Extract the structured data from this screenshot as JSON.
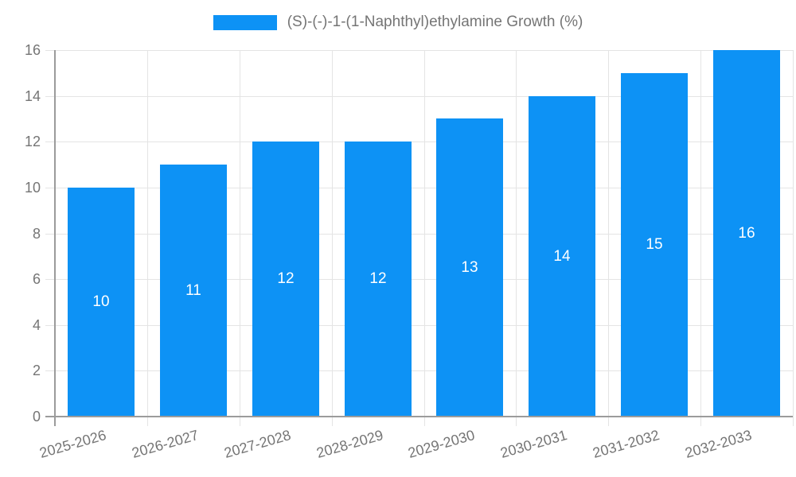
{
  "chart_data": {
    "type": "bar",
    "title": "(S)-(-)-1-(1-Naphthyl)ethylamine Growth (%)",
    "legend_position": "top",
    "categories": [
      "2025-2026",
      "2026-2027",
      "2027-2028",
      "2028-2029",
      "2029-2030",
      "2030-2031",
      "2031-2032",
      "2032-2033"
    ],
    "values": [
      10,
      11,
      12,
      12,
      13,
      14,
      15,
      16
    ],
    "yticks": [
      0,
      2,
      4,
      6,
      8,
      10,
      12,
      14,
      16
    ],
    "ylim": [
      0,
      16
    ],
    "grid": true,
    "xlabel": "",
    "ylabel": "",
    "bar_color": "#0d92f5",
    "bar_label_color": "#ffffff",
    "grid_color": "#e4e4e4",
    "axis_color": "#9b9b9b",
    "text_color": "#757575",
    "background_color": "#ffffff"
  }
}
